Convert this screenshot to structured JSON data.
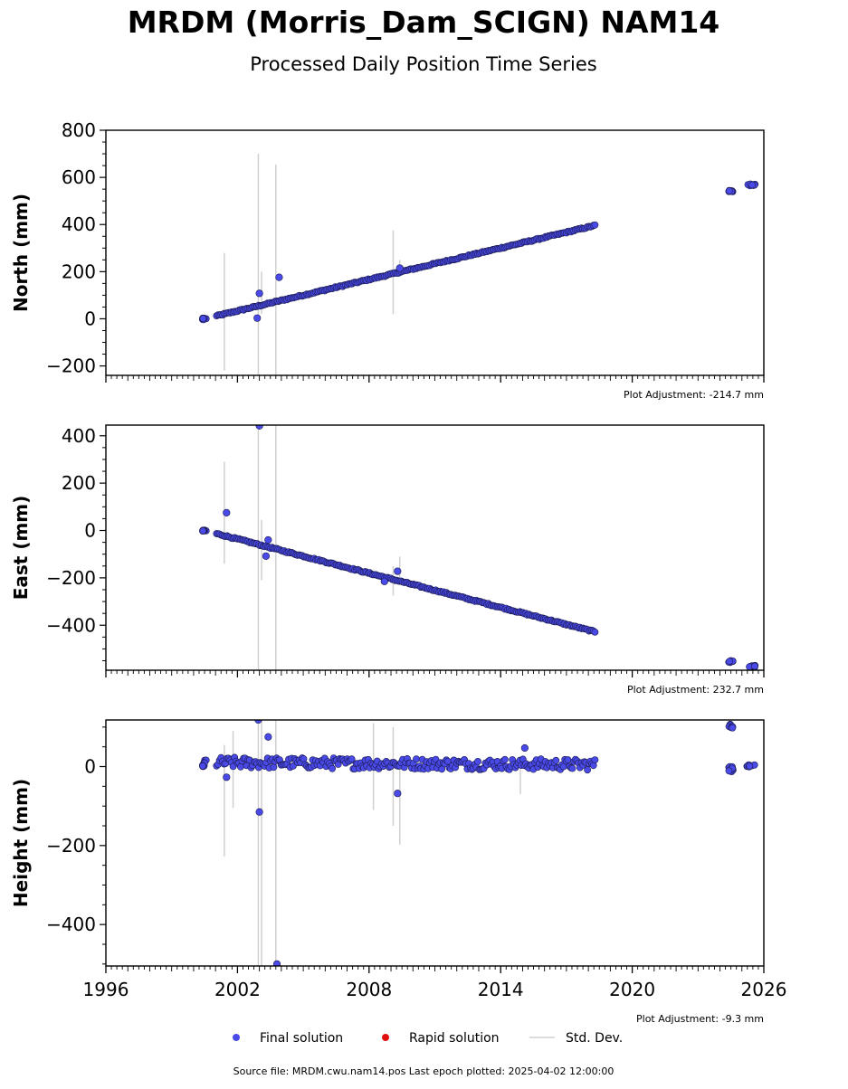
{
  "title": "MRDM (Morris_Dam_SCIGN) NAM14",
  "subtitle": "Processed Daily Position Time Series",
  "legend": {
    "final_label": "Final solution",
    "rapid_label": "Rapid solution",
    "std_label": "Std. Dev.",
    "final_color": "#4a4ae8",
    "rapid_color": "#e01010",
    "std_color": "#d0d0d0"
  },
  "footer": "Source file: MRDM.cwu.nam14.pos  Last epoch plotted: 2025-04-02 12:00:00",
  "chart_data": [
    {
      "type": "scatter",
      "ylabel": "North (mm)",
      "adjustment_label": "Plot Adjustment: -214.7 mm",
      "xlim": [
        1996,
        2026
      ],
      "ylim": [
        -240,
        800
      ],
      "yticks": [
        -200,
        0,
        200,
        400,
        600,
        800
      ],
      "trend": {
        "x": [
          2000.5,
          2018.3
        ],
        "y": [
          0,
          396
        ]
      },
      "clusters": [
        {
          "x": [
            2000.4,
            2000.5
          ],
          "y": [
            -4,
            4
          ]
        },
        {
          "x": [
            2024.4,
            2024.6
          ],
          "y": [
            538,
            546
          ]
        },
        {
          "x": [
            2025.2,
            2025.6
          ],
          "y": [
            564,
            572
          ]
        }
      ],
      "outliers": [
        {
          "x": 2002.9,
          "y": 3
        },
        {
          "x": 2003.0,
          "y": 108
        },
        {
          "x": 2003.9,
          "y": 176
        },
        {
          "x": 2009.4,
          "y": 215
        }
      ],
      "std_bars": [
        {
          "x": 2001.4,
          "lo": -220,
          "hi": 280
        },
        {
          "x": 2002.95,
          "lo": -240,
          "hi": 700
        },
        {
          "x": 2003.1,
          "lo": 20,
          "hi": 200
        },
        {
          "x": 2003.75,
          "lo": -240,
          "hi": 655
        },
        {
          "x": 2009.1,
          "lo": 20,
          "hi": 375
        },
        {
          "x": 2009.4,
          "lo": 180,
          "hi": 250
        }
      ]
    },
    {
      "type": "scatter",
      "ylabel": "East (mm)",
      "adjustment_label": "Plot Adjustment: 232.7 mm",
      "xlim": [
        1996,
        2026
      ],
      "ylim": [
        -590,
        445
      ],
      "yticks": [
        -400,
        -200,
        0,
        200,
        400
      ],
      "trend": {
        "x": [
          2000.5,
          2018.3
        ],
        "y": [
          0,
          -428
        ]
      },
      "clusters": [
        {
          "x": [
            2000.4,
            2000.5
          ],
          "y": [
            -3,
            3
          ]
        },
        {
          "x": [
            2024.4,
            2024.6
          ],
          "y": [
            -558,
            -550
          ]
        },
        {
          "x": [
            2025.2,
            2025.6
          ],
          "y": [
            -578,
            -570
          ]
        }
      ],
      "outliers": [
        {
          "x": 2001.5,
          "y": 75
        },
        {
          "x": 2003.0,
          "y": 442
        },
        {
          "x": 2003.3,
          "y": -108
        },
        {
          "x": 2003.4,
          "y": -40
        },
        {
          "x": 2009.3,
          "y": -172
        },
        {
          "x": 2008.7,
          "y": -215
        }
      ],
      "std_bars": [
        {
          "x": 2001.4,
          "lo": -140,
          "hi": 290
        },
        {
          "x": 2002.95,
          "lo": -590,
          "hi": 445
        },
        {
          "x": 2003.1,
          "lo": -210,
          "hi": 45
        },
        {
          "x": 2003.75,
          "lo": -590,
          "hi": 445
        },
        {
          "x": 2009.1,
          "lo": -275,
          "hi": -150
        },
        {
          "x": 2009.4,
          "lo": -220,
          "hi": -110
        }
      ]
    },
    {
      "type": "scatter",
      "ylabel": "Height (mm)",
      "adjustment_label": "Plot Adjustment: -9.3 mm",
      "xlim": [
        1996,
        2026
      ],
      "ylim": [
        -505,
        118
      ],
      "yticks": [
        -400,
        -200,
        0
      ],
      "xticks": [
        1996,
        2002,
        2008,
        2014,
        2020,
        2026
      ],
      "trend": {
        "x": [
          2000.5,
          2018.3
        ],
        "y": [
          10,
          5
        ]
      },
      "clusters": [
        {
          "x": [
            2000.4,
            2000.5
          ],
          "y": [
            0,
            15
          ]
        },
        {
          "x": [
            2024.4,
            2024.6
          ],
          "y": [
            98,
            110
          ]
        },
        {
          "x": [
            2024.4,
            2024.6
          ],
          "y": [
            -22,
            0
          ]
        },
        {
          "x": [
            2025.2,
            2025.6
          ],
          "y": [
            -5,
            5
          ]
        }
      ],
      "outliers": [
        {
          "x": 2001.5,
          "y": -27
        },
        {
          "x": 2002.95,
          "y": 118
        },
        {
          "x": 2003.0,
          "y": -115
        },
        {
          "x": 2003.4,
          "y": 75
        },
        {
          "x": 2003.8,
          "y": -500
        },
        {
          "x": 2009.3,
          "y": -68
        },
        {
          "x": 2015.1,
          "y": 47
        }
      ],
      "std_bars": [
        {
          "x": 2001.4,
          "lo": -228,
          "hi": 55
        },
        {
          "x": 2001.8,
          "lo": -105,
          "hi": 90
        },
        {
          "x": 2002.95,
          "lo": -505,
          "hi": 118
        },
        {
          "x": 2003.1,
          "lo": -505,
          "hi": 118
        },
        {
          "x": 2003.75,
          "lo": -505,
          "hi": 118
        },
        {
          "x": 2008.2,
          "lo": -110,
          "hi": 110
        },
        {
          "x": 2009.1,
          "lo": -150,
          "hi": 100
        },
        {
          "x": 2009.4,
          "lo": -198,
          "hi": 20
        },
        {
          "x": 2014.9,
          "lo": -70,
          "hi": 20
        }
      ]
    }
  ]
}
